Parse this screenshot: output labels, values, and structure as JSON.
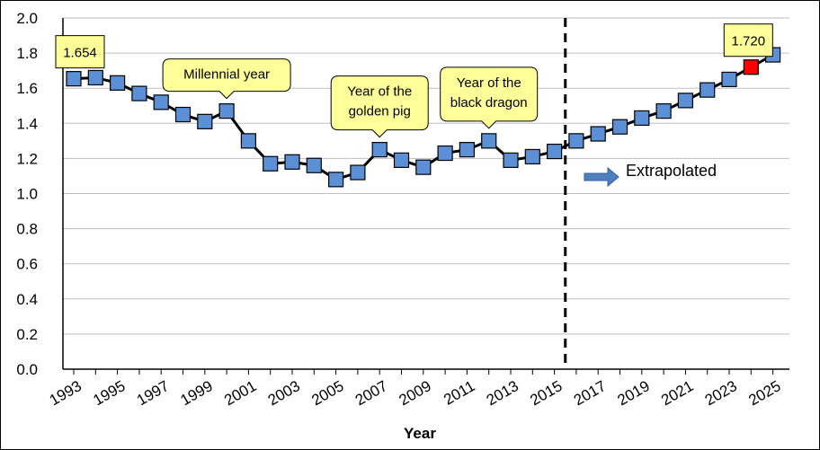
{
  "chart_data": {
    "type": "line",
    "xlabel": "Year",
    "ylabel": "",
    "ylim": [
      0.0,
      2.0
    ],
    "y_ticks": [
      "0.0",
      "0.2",
      "0.4",
      "0.6",
      "0.8",
      "1.0",
      "1.2",
      "1.4",
      "1.6",
      "1.8",
      "2.0"
    ],
    "x_ticks": [
      "1993",
      "1995",
      "1997",
      "1999",
      "2001",
      "2003",
      "2005",
      "2007",
      "2009",
      "2011",
      "2013",
      "2015",
      "2017",
      "2019",
      "2021",
      "2023",
      "2025"
    ],
    "grid": "horizontal",
    "x": [
      1993,
      1994,
      1995,
      1996,
      1997,
      1998,
      1999,
      2000,
      2001,
      2002,
      2003,
      2004,
      2005,
      2006,
      2007,
      2008,
      2009,
      2010,
      2011,
      2012,
      2013,
      2014,
      2015,
      2016,
      2017,
      2018,
      2019,
      2020,
      2021,
      2022,
      2023,
      2024,
      2025
    ],
    "values": [
      1.654,
      1.66,
      1.63,
      1.57,
      1.52,
      1.45,
      1.41,
      1.47,
      1.3,
      1.17,
      1.18,
      1.16,
      1.08,
      1.12,
      1.25,
      1.19,
      1.15,
      1.23,
      1.25,
      1.3,
      1.19,
      1.21,
      1.24,
      1.3,
      1.34,
      1.38,
      1.43,
      1.47,
      1.53,
      1.59,
      1.65,
      1.72,
      1.79
    ],
    "marker_color": "#5b8fd6",
    "highlight_color": "#ff0000",
    "highlight_year": 2024,
    "extrapolation_start": 2015.5,
    "extrapolated_label": "Extrapolated",
    "callouts": [
      {
        "year": 2000,
        "lines": [
          "Millennial year"
        ]
      },
      {
        "year": 2007,
        "lines": [
          "Year of the",
          "golden pig"
        ]
      },
      {
        "year": 2012,
        "lines": [
          "Year of the",
          "black dragon"
        ]
      }
    ],
    "value_labels": [
      {
        "year": 1993,
        "text": "1.654"
      },
      {
        "year": 2024,
        "text": "1.720"
      }
    ]
  }
}
